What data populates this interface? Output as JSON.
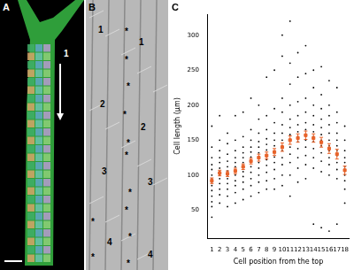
{
  "panels": [
    {
      "label": "A",
      "marks": [
        "1"
      ]
    },
    {
      "label": "B",
      "marks": [
        "1",
        "1",
        "2",
        "2",
        "3",
        "3",
        "4",
        "4"
      ],
      "asterisks": [
        "*",
        "*",
        "*",
        "*",
        "*",
        "*",
        "*",
        "*",
        "*",
        "*",
        "*",
        "*"
      ]
    }
  ],
  "chart_data": {
    "panel": "C",
    "type": "scatter",
    "x_label": "Cell position from the top",
    "y_label": "Cell length (µm)",
    "x": [
      1,
      2,
      3,
      4,
      5,
      6,
      7,
      8,
      9,
      10,
      11,
      12,
      13,
      14,
      15,
      16,
      17,
      18
    ],
    "values": [
      [
        40,
        55,
        62,
        70,
        78,
        85,
        90,
        95,
        100,
        108,
        115,
        125,
        140,
        170
      ],
      [
        60,
        72,
        80,
        88,
        95,
        100,
        105,
        110,
        118,
        125,
        135,
        150,
        185
      ],
      [
        55,
        70,
        80,
        88,
        95,
        100,
        106,
        112,
        120,
        130,
        145,
        160
      ],
      [
        60,
        75,
        85,
        92,
        100,
        106,
        112,
        118,
        125,
        135,
        150,
        185
      ],
      [
        65,
        80,
        90,
        98,
        105,
        112,
        118,
        125,
        132,
        140,
        155,
        190
      ],
      [
        70,
        85,
        95,
        104,
        112,
        120,
        126,
        133,
        140,
        150,
        165,
        210
      ],
      [
        75,
        90,
        100,
        110,
        118,
        125,
        132,
        140,
        148,
        160,
        180,
        200
      ],
      [
        80,
        92,
        104,
        114,
        122,
        128,
        136,
        144,
        152,
        165,
        185,
        240
      ],
      [
        80,
        95,
        108,
        118,
        126,
        134,
        142,
        150,
        160,
        175,
        195,
        250
      ],
      [
        85,
        100,
        115,
        125,
        135,
        142,
        150,
        160,
        172,
        190,
        210,
        270,
        300
      ],
      [
        70,
        100,
        118,
        130,
        140,
        150,
        158,
        168,
        180,
        200,
        230,
        260,
        320
      ],
      [
        90,
        110,
        125,
        138,
        148,
        155,
        162,
        172,
        185,
        205,
        240,
        275
      ],
      [
        95,
        115,
        128,
        140,
        150,
        158,
        165,
        175,
        190,
        210,
        245,
        285
      ],
      [
        30,
        110,
        125,
        138,
        148,
        155,
        162,
        172,
        185,
        200,
        225,
        250
      ],
      [
        25,
        105,
        120,
        132,
        142,
        150,
        158,
        168,
        180,
        195,
        215,
        255
      ],
      [
        20,
        100,
        115,
        125,
        135,
        142,
        150,
        160,
        172,
        185,
        200,
        235
      ],
      [
        30,
        95,
        108,
        118,
        128,
        135,
        142,
        150,
        160,
        175,
        190,
        225
      ],
      [
        60,
        80,
        92,
        100,
        106,
        112,
        118,
        125,
        135,
        150,
        170
      ]
    ],
    "color": "#000000",
    "means": [
      92,
      103,
      102,
      106,
      112,
      120,
      125,
      128,
      133,
      140,
      150,
      153,
      157,
      153,
      147,
      138,
      130,
      107
    ],
    "mean_errors": [
      4,
      4,
      4,
      4,
      4,
      4,
      5,
      5,
      5,
      6,
      6,
      6,
      6,
      6,
      7,
      7,
      7,
      6
    ],
    "mean_color": "#e8632a",
    "xlim": [
      0.5,
      18.5
    ],
    "xticks": [
      1,
      2,
      3,
      4,
      5,
      6,
      7,
      8,
      9,
      10,
      11,
      12,
      13,
      14,
      15,
      16,
      17,
      18
    ],
    "ylim": [
      10,
      330
    ],
    "yticks": [
      50,
      100,
      150,
      200,
      250,
      300
    ],
    "grid": false
  }
}
